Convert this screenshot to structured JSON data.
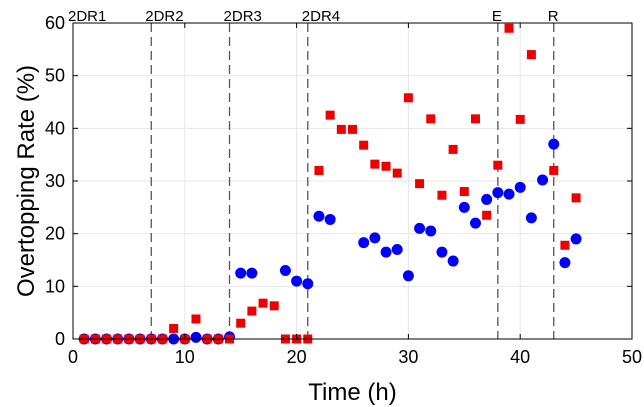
{
  "chart_data": {
    "type": "scatter",
    "xlabel": "Time (h)",
    "ylabel": "Overtopping Rate (%)",
    "xlim": [
      0,
      50
    ],
    "ylim": [
      0,
      60
    ],
    "xticks": [
      0,
      10,
      20,
      30,
      40,
      50
    ],
    "yticks": [
      0,
      10,
      20,
      30,
      40,
      50,
      60
    ],
    "grid": true,
    "phases": [
      {
        "label": "2DR1",
        "x": 0
      },
      {
        "label": "2DR2",
        "x": 7
      },
      {
        "label": "2DR3",
        "x": 14
      },
      {
        "label": "2DR4",
        "x": 21
      },
      {
        "label": "E",
        "x": 38
      },
      {
        "label": "R",
        "x": 43
      }
    ],
    "series": [
      {
        "marker": "circle",
        "color": "#0000ff",
        "points": [
          [
            1,
            0
          ],
          [
            2,
            0
          ],
          [
            3,
            0
          ],
          [
            4,
            0
          ],
          [
            5,
            0
          ],
          [
            6,
            0
          ],
          [
            7,
            0
          ],
          [
            8,
            0
          ],
          [
            9,
            0
          ],
          [
            10,
            0
          ],
          [
            11,
            0.3
          ],
          [
            12,
            0
          ],
          [
            13,
            0
          ],
          [
            14,
            0.4
          ],
          [
            15,
            12.5
          ],
          [
            16,
            12.5
          ],
          [
            19,
            13
          ],
          [
            20,
            11
          ],
          [
            21,
            10.5
          ],
          [
            22,
            23.3
          ],
          [
            23,
            22.7
          ],
          [
            26,
            18.3
          ],
          [
            27,
            19.2
          ],
          [
            28,
            16.5
          ],
          [
            29,
            17
          ],
          [
            30,
            12
          ],
          [
            31,
            21
          ],
          [
            32,
            20.5
          ],
          [
            33,
            16.5
          ],
          [
            34,
            14.8
          ],
          [
            35,
            25
          ],
          [
            36,
            22
          ],
          [
            37,
            26.5
          ],
          [
            38,
            27.8
          ],
          [
            39,
            27.5
          ],
          [
            40,
            28.8
          ],
          [
            41,
            23
          ],
          [
            42,
            30.2
          ],
          [
            43,
            37
          ],
          [
            44,
            14.5
          ],
          [
            45,
            19
          ]
        ]
      },
      {
        "marker": "square",
        "color": "#ee0000",
        "points": [
          [
            1,
            0
          ],
          [
            2,
            0
          ],
          [
            3,
            0
          ],
          [
            4,
            0
          ],
          [
            5,
            0
          ],
          [
            6,
            0
          ],
          [
            7,
            0
          ],
          [
            8,
            0
          ],
          [
            9,
            2
          ],
          [
            10,
            0
          ],
          [
            11,
            3.8
          ],
          [
            12,
            0
          ],
          [
            13,
            0
          ],
          [
            14,
            0
          ],
          [
            15,
            3
          ],
          [
            16,
            5.3
          ],
          [
            17,
            6.8
          ],
          [
            18,
            6.3
          ],
          [
            19,
            0
          ],
          [
            20,
            0
          ],
          [
            21,
            0
          ],
          [
            22,
            32
          ],
          [
            23,
            42.5
          ],
          [
            24,
            39.8
          ],
          [
            25,
            39.8
          ],
          [
            26,
            36.8
          ],
          [
            27,
            33.2
          ],
          [
            28,
            32.8
          ],
          [
            29,
            31.5
          ],
          [
            30,
            45.8
          ],
          [
            31,
            29.5
          ],
          [
            32,
            41.8
          ],
          [
            33,
            27.3
          ],
          [
            34,
            36
          ],
          [
            35,
            28
          ],
          [
            36,
            41.8
          ],
          [
            37,
            23.5
          ],
          [
            38,
            33
          ],
          [
            39,
            59
          ],
          [
            40,
            41.7
          ],
          [
            41,
            54
          ],
          [
            43,
            32
          ],
          [
            44,
            17.8
          ],
          [
            45,
            26.8
          ]
        ]
      }
    ]
  }
}
